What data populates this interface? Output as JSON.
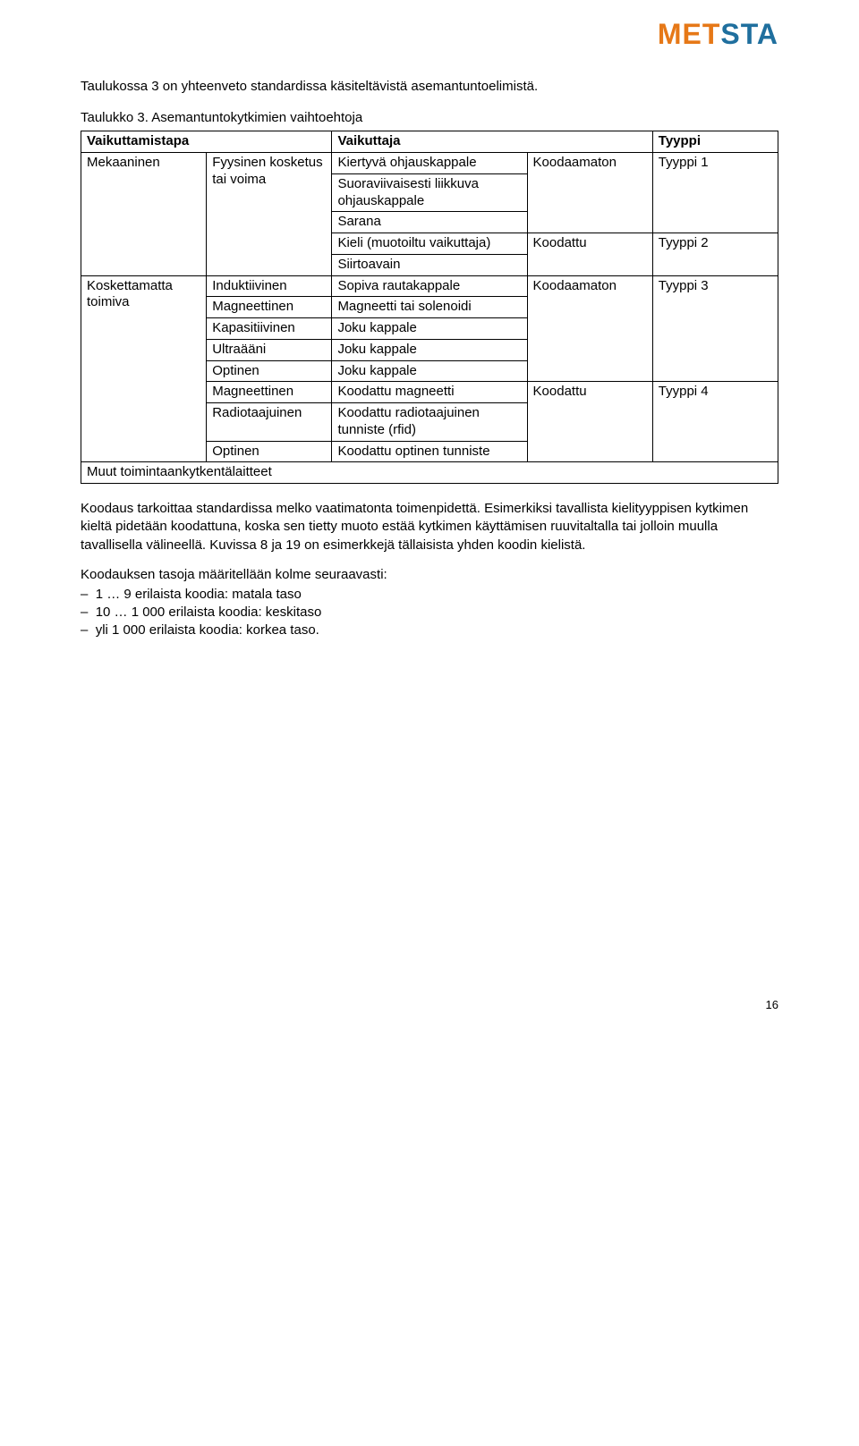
{
  "logo": {
    "part1": "MET",
    "part1_color": "#e67817",
    "part2": "STA",
    "part2_color": "#1f6f9e"
  },
  "intro": "Taulukossa 3 on yhteenveto standardissa käsiteltävistä asemantuntoelimistä.",
  "caption": "Taulukko 3. Asemantuntokytkimien vaihtoehtoja",
  "headers": {
    "c1": "Vaikuttamistapa",
    "c2": "Vaikuttaja",
    "c3": "Tyyppi"
  },
  "rows": {
    "r1c1": "Mekaaninen",
    "r1c2": "Fyysinen kosketus tai voima",
    "r1c3": "Kiertyvä ohjauskappale",
    "r1c4": "Koodaamaton",
    "r1c5": "Tyyppi 1",
    "r2c3": "Suoraviivaisesti liikkuva ohjauskappale",
    "r3c3": "Sarana",
    "r4c3": "Kieli (muotoiltu vaikuttaja)",
    "r4c4": "Koodattu",
    "r4c5": "Tyyppi 2",
    "r5c3": "Siirtoavain",
    "r6c1": "Koskettamatta toimiva",
    "r6c2": "Induktiivinen",
    "r6c3": "Sopiva rautakappale",
    "r6c4": "Koodaamaton",
    "r6c5": "Tyyppi 3",
    "r7c2": "Magneettinen",
    "r7c3": "Magneetti tai solenoidi",
    "r8c2": "Kapasitiivinen",
    "r8c3": "Joku kappale",
    "r9c2": "Ultraääni",
    "r9c3": "Joku kappale",
    "r10c2": "Optinen",
    "r10c3": "Joku kappale",
    "r11c2": "Magneettinen",
    "r11c3": "Koodattu magneetti",
    "r11c4": "Koodattu",
    "r11c5": "Tyyppi 4",
    "r12c2": "Radiotaajuinen",
    "r12c3": "Koodattu radiotaajuinen tunniste (rfid)",
    "r13c2": "Optinen",
    "r13c3": "Koodattu optinen tunniste",
    "r14c1": "Muut toimintaankytkentälaitteet"
  },
  "para2": "Koodaus tarkoittaa standardissa melko vaatimatonta toimenpidettä. Esimerkiksi tavallista kielityyppisen kytkimen kieltä pidetään koodattuna, koska sen tietty muoto estää kytkimen käyttämisen ruuvitaltalla tai jolloin muulla tavallisella välineellä. Kuvissa 8 ja 19 on esimerkkejä tällaisista yhden koodin kielistä.",
  "listIntro": "Koodauksen tasoja määritellään kolme seuraavasti:",
  "list": [
    "1 … 9 erilaista koodia: matala taso",
    "10 … 1 000 erilaista koodia: keskitaso",
    "yli 1 000 erilaista koodia: korkea taso."
  ],
  "pageNumber": "16"
}
